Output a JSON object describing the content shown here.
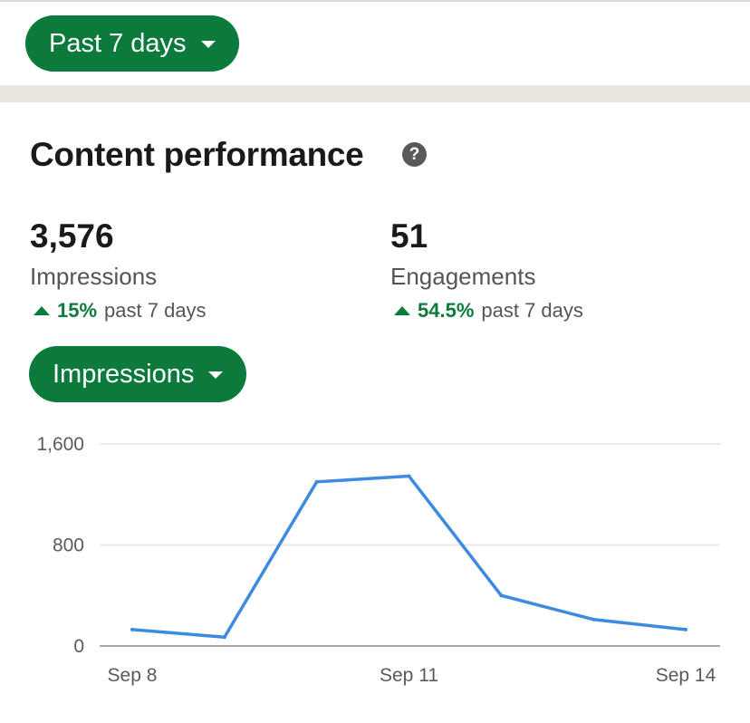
{
  "filters": {
    "date_range_label": "Past 7 days",
    "metric_label": "Impressions"
  },
  "section": {
    "title": "Content performance",
    "help_icon_glyph": "?"
  },
  "metrics": {
    "impressions": {
      "value": "3,576",
      "label": "Impressions",
      "change_pct": "15%",
      "change_period": "past 7 days"
    },
    "engagements": {
      "value": "51",
      "label": "Engagements",
      "change_pct": "54.5%",
      "change_period": "past 7 days"
    }
  },
  "colors": {
    "accent_green": "#0b7a3b",
    "line_blue": "#3d8ae0",
    "band": "#e9e5df"
  },
  "icons": {
    "dropdown": "caret-down-icon",
    "help": "question-circle-icon",
    "trend": "triangle-up-icon"
  },
  "chart_data": {
    "type": "line",
    "x": [
      "Sep 8",
      "Sep 9",
      "Sep 10",
      "Sep 11",
      "Sep 12",
      "Sep 13",
      "Sep 14"
    ],
    "x_tick_labels": [
      "Sep 8",
      "Sep 11",
      "Sep 14"
    ],
    "series": [
      {
        "values": [
          130,
          70,
          1300,
          1345,
          400,
          210,
          130
        ]
      }
    ],
    "y_ticks": [
      "0",
      "800",
      "1,600"
    ],
    "y_tick_values": [
      0,
      800,
      1600
    ],
    "ylim": [
      0,
      1600
    ],
    "grid": true,
    "legend": "none"
  }
}
